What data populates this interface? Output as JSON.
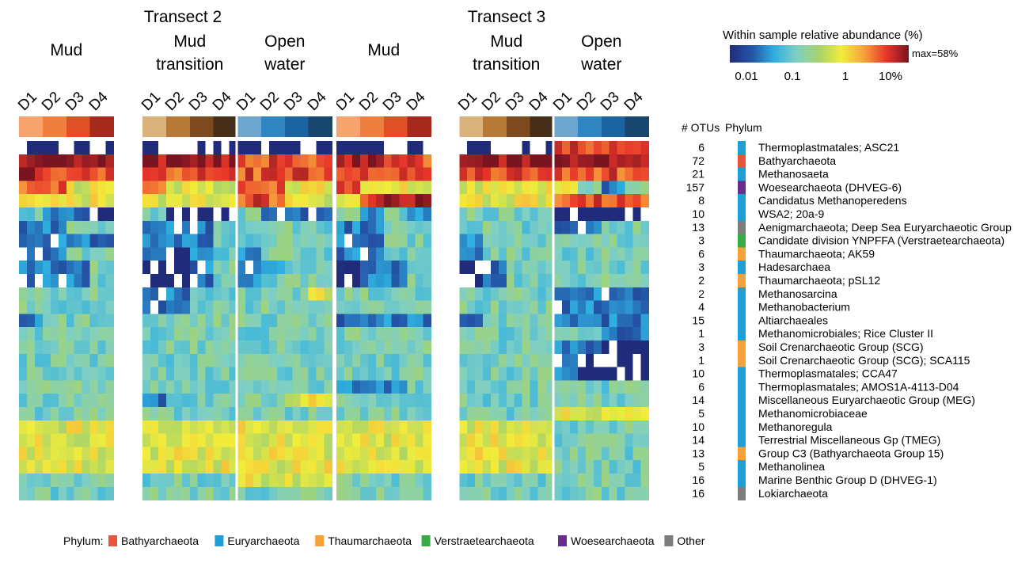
{
  "transects": [
    {
      "title": "Transect 2",
      "groups": [
        {
          "name_lines": [
            "Mud"
          ],
          "depths": [
            "D1",
            "D2",
            "D3",
            "D4"
          ],
          "header_colors": [
            "#f6a36e",
            "#f07e3f",
            "#e04f26",
            "#a52a1d"
          ]
        },
        {
          "name_lines": [
            "Mud",
            "transition"
          ],
          "depths": [
            "D1",
            "D2",
            "D3",
            "D4"
          ],
          "header_colors": [
            "#d9b27c",
            "#b57a36",
            "#7d4a20",
            "#46301a"
          ]
        },
        {
          "name_lines": [
            "Open",
            "water"
          ],
          "depths": [
            "D1",
            "D2",
            "D3",
            "D4"
          ],
          "header_colors": [
            "#6fa6cf",
            "#2f85c0",
            "#1b63a1",
            "#17476f"
          ]
        }
      ]
    },
    {
      "title": "Transect 3",
      "groups": [
        {
          "name_lines": [
            "Mud"
          ],
          "depths": [
            "D1",
            "D2",
            "D3",
            "D4"
          ],
          "header_colors": [
            "#f6a36e",
            "#f07e3f",
            "#e04f26",
            "#a52a1d"
          ]
        },
        {
          "name_lines": [
            "Mud",
            "transition"
          ],
          "depths": [
            "D1",
            "D2",
            "D3",
            "D4"
          ],
          "header_colors": [
            "#d9b27c",
            "#b57a36",
            "#7d4a20",
            "#46301a"
          ]
        },
        {
          "name_lines": [
            "Open",
            "water"
          ],
          "depths": [
            "D1",
            "D2",
            "D3",
            "D4"
          ],
          "header_colors": [
            "#6fa6cf",
            "#2f85c0",
            "#1b63a1",
            "#17476f"
          ]
        }
      ]
    }
  ],
  "colorbar": {
    "title": "Within sample relative abundance (%)",
    "max_label": "max=58%",
    "ticks": [
      "0.01",
      "0.1",
      "1",
      "10%"
    ],
    "stops": [
      "#202c7a",
      "#2456a8",
      "#2fb0e0",
      "#7fcfc3",
      "#a7d46a",
      "#f2ec3a",
      "#f7a13a",
      "#e8352a",
      "#7a1420"
    ]
  },
  "columns_header": {
    "otus": "# OTUs",
    "phylum": "Phylum"
  },
  "legend": {
    "prefix": "Phylum:",
    "items": [
      {
        "name": "Bathyarchaeota",
        "color": "#e8553a"
      },
      {
        "name": "Euryarchaeota",
        "color": "#1e9fd6"
      },
      {
        "name": "Thaumarchaeota",
        "color": "#f6a23b"
      },
      {
        "name": "Verstraetearchaeota",
        "color": "#3aaa47"
      },
      {
        "name": "Woesearchaeota",
        "color": "#6a2c8f"
      },
      {
        "name": "Other",
        "color": "#7d7d7d"
      }
    ]
  },
  "chart_data": {
    "type": "heatmap",
    "title": "",
    "value_unit": "Within sample relative abundance (%)",
    "scale": "log",
    "levels_scale": [
      "<=0.01",
      "0.01-0.1",
      "0.1-1",
      "1-10",
      "10-58"
    ],
    "columns_per_depth": 3,
    "rows": [
      {
        "label": "Thermoplastmatales; ASC21",
        "otus": "6",
        "phylum": "Euryarchaeota",
        "seed": 11,
        "abund": [
          0,
          0,
          0,
          0,
          0,
          0,
          0,
          0,
          0,
          0,
          0,
          0,
          0,
          0,
          0,
          0,
          0,
          0,
          0,
          0,
          4,
          4,
          4,
          4
        ]
      },
      {
        "label": "Bathyarchaeota",
        "otus": "72",
        "phylum": "Bathyarchaeota",
        "seed": 12,
        "abund": [
          5,
          5,
          5,
          5,
          5,
          5,
          5,
          5,
          4,
          4,
          4,
          4,
          5,
          5,
          4,
          4,
          5,
          5,
          5,
          5,
          5,
          5,
          5,
          5
        ]
      },
      {
        "label": "Methanosaeta",
        "otus": "21",
        "phylum": "Euryarchaeota",
        "seed": 13,
        "abund": [
          5,
          4,
          4,
          4,
          4,
          4,
          4,
          4,
          4,
          4,
          4,
          4,
          4,
          4,
          4,
          4,
          4,
          4,
          4,
          4,
          4,
          4,
          4,
          4
        ]
      },
      {
        "label": "Woesearchaeota (DHVEG-6)",
        "otus": "157",
        "phylum": "Woesearchaeota",
        "seed": 14,
        "abund": [
          4,
          4,
          3,
          3,
          4,
          3,
          3,
          3,
          4,
          4,
          3,
          3,
          4,
          3,
          3,
          3,
          3,
          3,
          3,
          3,
          3,
          2,
          1,
          2
        ]
      },
      {
        "label": "Candidatus Methanoperedens",
        "otus": "8",
        "phylum": "Euryarchaeota",
        "seed": 15,
        "abund": [
          3,
          3,
          3,
          3,
          3,
          3,
          3,
          3,
          4,
          4,
          3,
          3,
          3,
          4,
          5,
          5,
          3,
          3,
          3,
          3,
          4,
          4,
          4,
          4
        ]
      },
      {
        "label": "WSA2; 20a-9",
        "otus": "10",
        "phylum": "Euryarchaeota",
        "seed": 16,
        "abund": [
          2,
          1,
          1,
          0,
          2,
          0,
          0,
          0,
          2,
          1,
          1,
          1,
          2,
          1,
          2,
          1,
          2,
          2,
          2,
          2,
          0,
          0,
          0,
          0
        ]
      },
      {
        "label": "Aenigmarchaeota; Deep Sea Euryarchaeotic Group",
        "otus": "13",
        "phylum": "Other",
        "seed": 17,
        "abund": [
          1,
          1,
          2,
          2,
          1,
          1,
          1,
          2,
          2,
          2,
          2,
          2,
          1,
          1,
          2,
          2,
          2,
          2,
          2,
          2,
          1,
          1,
          2,
          2
        ]
      },
      {
        "label": "Candidate division YNPFFA (Verstraetearchaeota)",
        "otus": "3",
        "phylum": "Verstraetearchaeota",
        "seed": 18,
        "abund": [
          1,
          1,
          1,
          1,
          1,
          1,
          1,
          2,
          2,
          2,
          2,
          2,
          1,
          1,
          2,
          2,
          1,
          2,
          2,
          2,
          2,
          2,
          2,
          2
        ]
      },
      {
        "label": "Thaumarchaeota; AK59",
        "otus": "6",
        "phylum": "Thaumarchaeota",
        "seed": 19,
        "abund": [
          1,
          1,
          2,
          2,
          1,
          0,
          1,
          2,
          1,
          2,
          2,
          2,
          1,
          1,
          2,
          2,
          1,
          2,
          2,
          2,
          2,
          2,
          2,
          2
        ]
      },
      {
        "label": "Hadesarchaea",
        "otus": "3",
        "phylum": "Euryarchaeota",
        "seed": 20,
        "abund": [
          1,
          1,
          1,
          2,
          0,
          0,
          1,
          2,
          1,
          1,
          2,
          2,
          0,
          1,
          1,
          2,
          0,
          1,
          2,
          2,
          2,
          2,
          2,
          2
        ]
      },
      {
        "label": "Thaumarchaeota; pSL12",
        "otus": "2",
        "phylum": "Thaumarchaeota",
        "seed": 21,
        "abund": [
          1,
          1,
          1,
          2,
          0,
          0,
          1,
          2,
          1,
          2,
          2,
          2,
          0,
          1,
          1,
          2,
          0,
          1,
          2,
          2,
          2,
          2,
          2,
          2
        ]
      },
      {
        "label": "Methanosarcina",
        "otus": "2",
        "phylum": "Euryarchaeota",
        "seed": 22,
        "abund": [
          2,
          2,
          2,
          2,
          1,
          1,
          2,
          2,
          2,
          2,
          2,
          3,
          2,
          2,
          2,
          2,
          2,
          2,
          2,
          2,
          1,
          1,
          1,
          1
        ]
      },
      {
        "label": "Methanobacterium",
        "otus": "4",
        "phylum": "Euryarchaeota",
        "seed": 23,
        "abund": [
          2,
          2,
          2,
          2,
          1,
          1,
          2,
          2,
          2,
          2,
          2,
          2,
          2,
          2,
          2,
          2,
          2,
          2,
          2,
          2,
          1,
          1,
          1,
          1
        ]
      },
      {
        "label": "Altiarchaeales",
        "otus": "15",
        "phylum": "Euryarchaeota",
        "seed": 24,
        "abund": [
          1,
          2,
          2,
          2,
          2,
          2,
          2,
          2,
          2,
          2,
          2,
          2,
          1,
          1,
          1,
          1,
          1,
          2,
          2,
          2,
          1,
          1,
          1,
          1
        ]
      },
      {
        "label": "Methanomicrobiales; Rice Cluster II",
        "otus": "1",
        "phylum": "Euryarchaeota",
        "seed": 25,
        "abund": [
          2,
          2,
          2,
          2,
          2,
          2,
          2,
          2,
          2,
          2,
          2,
          2,
          2,
          2,
          2,
          2,
          2,
          2,
          2,
          2,
          2,
          2,
          1,
          1
        ]
      },
      {
        "label": "Soil Crenarchaeotic Group (SCG)",
        "otus": "3",
        "phylum": "Thaumarchaeota",
        "seed": 26,
        "abund": [
          2,
          2,
          2,
          2,
          2,
          2,
          2,
          2,
          2,
          2,
          2,
          2,
          2,
          2,
          2,
          2,
          2,
          2,
          2,
          2,
          1,
          1,
          0,
          0
        ]
      },
      {
        "label": "Soil Crenarchaeotic Group (SCG); SCA115",
        "otus": "1",
        "phylum": "Thaumarchaeota",
        "seed": 27,
        "abund": [
          2,
          2,
          2,
          2,
          2,
          2,
          2,
          2,
          2,
          2,
          2,
          2,
          2,
          2,
          2,
          2,
          2,
          2,
          2,
          2,
          1,
          0,
          0,
          0
        ]
      },
      {
        "label": "Thermoplasmatales; CCA47",
        "otus": "10",
        "phylum": "Euryarchaeota",
        "seed": 28,
        "abund": [
          2,
          2,
          2,
          2,
          2,
          2,
          2,
          2,
          2,
          2,
          2,
          2,
          2,
          2,
          2,
          2,
          2,
          2,
          2,
          2,
          1,
          0,
          0,
          0
        ]
      },
      {
        "label": "Thermoplasmatales; AMOS1A-4113-D04",
        "otus": "6",
        "phylum": "Euryarchaeota",
        "seed": 29,
        "abund": [
          2,
          2,
          2,
          2,
          2,
          2,
          2,
          2,
          2,
          2,
          2,
          2,
          1,
          1,
          1,
          2,
          2,
          2,
          2,
          2,
          2,
          2,
          2,
          2
        ]
      },
      {
        "label": "Miscellaneous Euryarchaeotic Group (MEG)",
        "otus": "14",
        "phylum": "Euryarchaeota",
        "seed": 30,
        "abund": [
          2,
          2,
          2,
          2,
          1,
          2,
          2,
          2,
          2,
          2,
          3,
          3,
          2,
          2,
          2,
          2,
          2,
          2,
          2,
          2,
          2,
          2,
          2,
          2
        ]
      },
      {
        "label": "Methanomicrobiaceae",
        "otus": "5",
        "phylum": "Euryarchaeota",
        "seed": 31,
        "abund": [
          2,
          2,
          2,
          2,
          2,
          2,
          2,
          2,
          2,
          2,
          2,
          2,
          2,
          2,
          2,
          2,
          2,
          2,
          2,
          2,
          3,
          3,
          3,
          3
        ]
      },
      {
        "label": "Methanoregula",
        "otus": "10",
        "phylum": "Euryarchaeota",
        "seed": 32,
        "abund": [
          3,
          3,
          3,
          3,
          3,
          3,
          3,
          3,
          3,
          3,
          3,
          3,
          3,
          3,
          3,
          3,
          3,
          3,
          3,
          3,
          2,
          2,
          2,
          2
        ]
      },
      {
        "label": "Terrestrial Miscellaneous Gp (TMEG)",
        "otus": "14",
        "phylum": "Euryarchaeota",
        "seed": 33,
        "abund": [
          3,
          3,
          3,
          3,
          3,
          3,
          3,
          3,
          3,
          3,
          3,
          3,
          3,
          3,
          3,
          3,
          3,
          3,
          3,
          3,
          2,
          2,
          2,
          2
        ]
      },
      {
        "label": "Group C3 (Bathyarchaeota Group 15)",
        "otus": "13",
        "phylum": "Thaumarchaeota",
        "seed": 34,
        "abund": [
          3,
          3,
          3,
          3,
          3,
          3,
          3,
          3,
          3,
          3,
          3,
          3,
          3,
          3,
          3,
          3,
          3,
          3,
          3,
          3,
          2,
          2,
          2,
          2
        ]
      },
      {
        "label": "Methanolinea",
        "otus": "5",
        "phylum": "Euryarchaeota",
        "seed": 35,
        "abund": [
          3,
          3,
          3,
          3,
          3,
          3,
          3,
          3,
          3,
          3,
          3,
          3,
          3,
          3,
          3,
          3,
          3,
          3,
          3,
          3,
          2,
          2,
          2,
          2
        ]
      },
      {
        "label": "Marine Benthic Group D (DHVEG-1)",
        "otus": "16",
        "phylum": "Euryarchaeota",
        "seed": 36,
        "abund": [
          2,
          2,
          2,
          2,
          2,
          2,
          2,
          2,
          3,
          3,
          3,
          3,
          2,
          2,
          2,
          2,
          2,
          2,
          2,
          2,
          2,
          2,
          2,
          2
        ]
      },
      {
        "label": "Lokiarchaeota",
        "otus": "16",
        "phylum": "Other",
        "seed": 37,
        "abund": [
          2,
          2,
          2,
          2,
          2,
          2,
          2,
          2,
          2,
          2,
          2,
          2,
          2,
          2,
          2,
          2,
          2,
          2,
          2,
          2,
          2,
          2,
          2,
          2
        ]
      }
    ]
  }
}
